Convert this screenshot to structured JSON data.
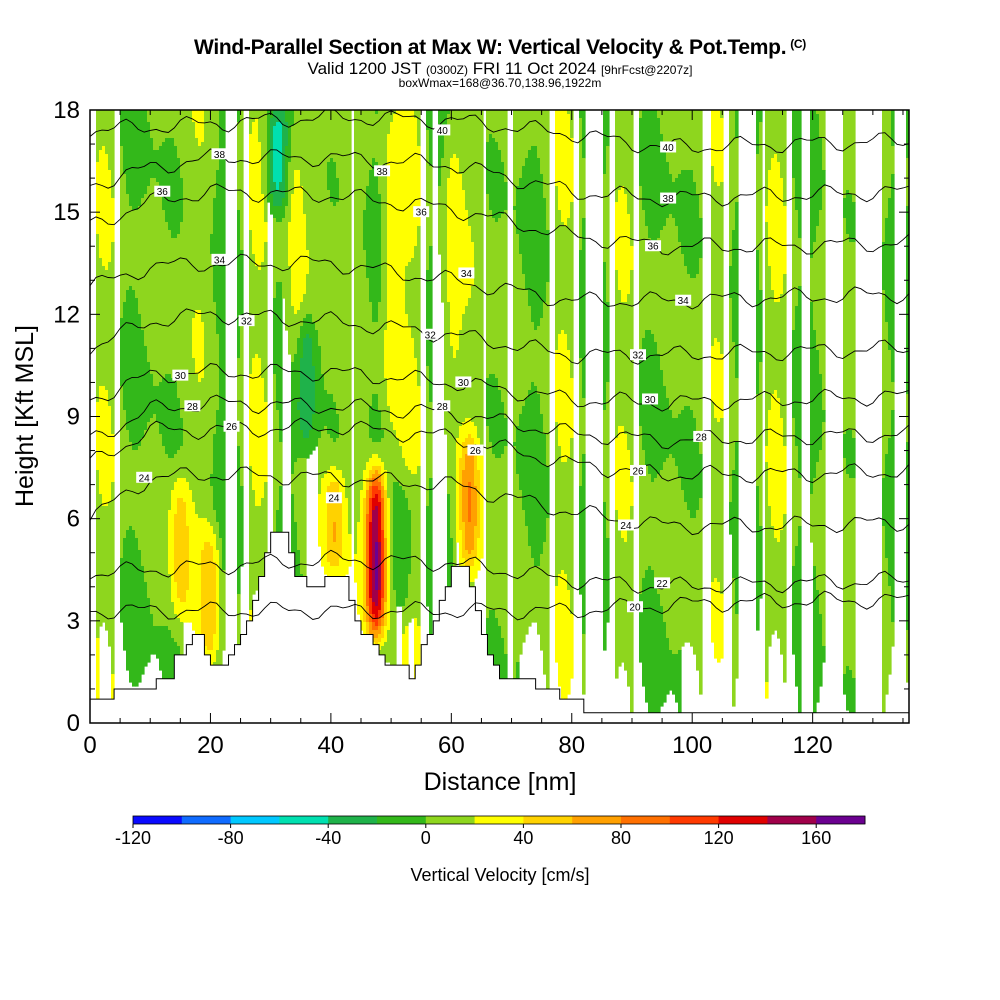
{
  "header": {
    "title": "Wind-Parallel Section at Max W: Vertical Velocity & Pot.Temp.",
    "copyright": "(C)",
    "valid_main": "Valid 1200 JST",
    "valid_utc": "(0300Z)",
    "valid_date": "FRI 11 Oct 2024",
    "forecast": "[9hrFcst@2207z]",
    "box_info": "boxWmax=168@36.70,138.96,1922m"
  },
  "chart_data": {
    "type": "heatmap",
    "xlabel": "Distance [nm]",
    "ylabel": "Height [Kft MSL]",
    "xlim": [
      0,
      136
    ],
    "ylim": [
      0,
      18
    ],
    "x_ticks": [
      0,
      20,
      40,
      60,
      80,
      100,
      120
    ],
    "y_ticks": [
      0,
      3,
      6,
      9,
      12,
      15,
      18
    ],
    "colorbar": {
      "label": "Vertical Velocity [cm/s]",
      "bounds": [
        -120,
        -100,
        -80,
        -60,
        -40,
        -20,
        0,
        20,
        40,
        60,
        80,
        100,
        120,
        140,
        160,
        180
      ],
      "tick_labels": [
        "-120",
        "-80",
        "-40",
        "0",
        "40",
        "80",
        "120",
        "160"
      ],
      "tick_values": [
        -120,
        -80,
        -40,
        0,
        40,
        80,
        120,
        160
      ],
      "colors": [
        "#0a0aff",
        "#0f6bff",
        "#00c8ff",
        "#00e0b0",
        "#1fb24a",
        "#33b81a",
        "#8ed61e",
        "#ffff00",
        "#ffd200",
        "#ffa000",
        "#ff7000",
        "#ff3a00",
        "#e00000",
        "#a0004a",
        "#6b0090"
      ]
    },
    "terrain_kft": [
      [
        0,
        0.7
      ],
      [
        3,
        0.7
      ],
      [
        4,
        1.0
      ],
      [
        9,
        1.0
      ],
      [
        11,
        1.3
      ],
      [
        13,
        1.3
      ],
      [
        14,
        2.0
      ],
      [
        15,
        2.0
      ],
      [
        16,
        2.3
      ],
      [
        17,
        2.6
      ],
      [
        18,
        2.6
      ],
      [
        19,
        2.0
      ],
      [
        20,
        1.7
      ],
      [
        22,
        1.7
      ],
      [
        23,
        2.0
      ],
      [
        24,
        2.3
      ],
      [
        25,
        2.6
      ],
      [
        26,
        3.0
      ],
      [
        27,
        3.6
      ],
      [
        28,
        4.3
      ],
      [
        29,
        5.0
      ],
      [
        30,
        5.6
      ],
      [
        31,
        5.6
      ],
      [
        33,
        5.0
      ],
      [
        34,
        4.3
      ],
      [
        35,
        4.3
      ],
      [
        36,
        4.0
      ],
      [
        38,
        4.0
      ],
      [
        39,
        4.3
      ],
      [
        42,
        4.3
      ],
      [
        43,
        3.6
      ],
      [
        44,
        3.0
      ],
      [
        45,
        2.6
      ],
      [
        46,
        2.6
      ],
      [
        47,
        2.3
      ],
      [
        48,
        2.0
      ],
      [
        49,
        1.7
      ],
      [
        53,
        1.3
      ],
      [
        54,
        1.7
      ],
      [
        55,
        2.3
      ],
      [
        56,
        2.6
      ],
      [
        57,
        3.0
      ],
      [
        58,
        3.6
      ],
      [
        59,
        4.0
      ],
      [
        60,
        4.6
      ],
      [
        62,
        4.6
      ],
      [
        63,
        4.0
      ],
      [
        64,
        3.3
      ],
      [
        65,
        2.6
      ],
      [
        66,
        2.0
      ],
      [
        67,
        1.7
      ],
      [
        68,
        1.3
      ],
      [
        72,
        1.3
      ],
      [
        74,
        1.0
      ],
      [
        76,
        1.0
      ],
      [
        78,
        0.7
      ],
      [
        80,
        0.7
      ],
      [
        82,
        0.3
      ],
      [
        136,
        0.3
      ]
    ],
    "wind_cores_cms": [
      {
        "x": 47.5,
        "ymin": 2.5,
        "ymax": 7.5,
        "w": 168
      },
      {
        "x": 63,
        "ymin": 4.5,
        "ymax": 8.5,
        "w": 60
      },
      {
        "x": 15,
        "ymin": 3.0,
        "ymax": 7.3,
        "w": 45
      },
      {
        "x": 20,
        "ymin": 1.7,
        "ymax": 5.8,
        "w": 45
      },
      {
        "x": 40.5,
        "ymin": 4.3,
        "ymax": 7.5,
        "w": 50
      },
      {
        "x": 50,
        "ymin": 8.5,
        "ymax": 18,
        "w": 35
      },
      {
        "x": 60,
        "ymin": 9.0,
        "ymax": 18,
        "w": 30
      },
      {
        "x": 34,
        "ymin": 10.0,
        "ymax": 18,
        "w": 30
      },
      {
        "x": 31,
        "ymin": 15.0,
        "ymax": 18,
        "w": -50
      },
      {
        "x": 36,
        "ymin": 8.0,
        "ymax": 12.0,
        "w": -40
      },
      {
        "x": 52,
        "ymin": 3.0,
        "ymax": 7.0,
        "w": -30
      }
    ],
    "theta_contours": [
      {
        "label": "20",
        "x": [
          0,
          30,
          60,
          80,
          90,
          100,
          120,
          136
        ],
        "y": [
          3.3,
          3.3,
          3.3,
          3.3,
          3.4,
          3.5,
          3.6,
          3.6
        ]
      },
      {
        "label": "22",
        "x": [
          0,
          20,
          40,
          60,
          80,
          95,
          115,
          136
        ],
        "y": [
          4.4,
          4.6,
          4.8,
          4.7,
          4.2,
          4.0,
          4.1,
          4.2
        ]
      },
      {
        "label": "24",
        "x": [
          0,
          10,
          20,
          40,
          60,
          80,
          95,
          115,
          136
        ],
        "y": [
          6.0,
          7.2,
          7.3,
          7.2,
          7.0,
          6.2,
          5.8,
          5.8,
          5.9
        ]
      },
      {
        "label": "26",
        "x": [
          0,
          10,
          20,
          40,
          60,
          80,
          95,
          115,
          136
        ],
        "y": [
          7.6,
          8.6,
          8.6,
          8.7,
          8.4,
          7.6,
          7.3,
          7.3,
          7.4
        ]
      },
      {
        "label": "28",
        "x": [
          0,
          10,
          20,
          40,
          60,
          80,
          95,
          115,
          136
        ],
        "y": [
          8.3,
          9.2,
          9.4,
          9.3,
          9.1,
          8.5,
          8.3,
          8.4,
          8.5
        ]
      },
      {
        "label": "30",
        "x": [
          0,
          10,
          20,
          40,
          60,
          80,
          95,
          115,
          136
        ],
        "y": [
          9.5,
          10.2,
          10.3,
          10.3,
          10.0,
          9.5,
          9.4,
          9.5,
          9.6
        ]
      },
      {
        "label": "32",
        "x": [
          0,
          10,
          20,
          40,
          60,
          80,
          95,
          115,
          136
        ],
        "y": [
          11.0,
          11.8,
          12.0,
          11.8,
          11.4,
          10.8,
          10.8,
          10.9,
          11.0
        ]
      },
      {
        "label": "34",
        "x": [
          0,
          10,
          20,
          40,
          60,
          80,
          95,
          115,
          136
        ],
        "y": [
          12.8,
          13.4,
          13.5,
          13.5,
          13.0,
          12.4,
          12.4,
          12.5,
          12.6
        ]
      },
      {
        "label": "36",
        "x": [
          0,
          10,
          20,
          40,
          60,
          80,
          95,
          115,
          136
        ],
        "y": [
          14.6,
          15.3,
          15.6,
          15.5,
          15.1,
          14.3,
          14.0,
          14.0,
          14.1
        ]
      },
      {
        "label": "38",
        "x": [
          0,
          10,
          20,
          40,
          60,
          80,
          95,
          115,
          136
        ],
        "y": [
          15.8,
          16.3,
          16.6,
          16.6,
          16.4,
          15.6,
          15.4,
          15.5,
          15.6
        ]
      },
      {
        "label": "40",
        "x": [
          0,
          20,
          40,
          60,
          80,
          95,
          115,
          136
        ],
        "y": [
          17.4,
          17.6,
          17.8,
          17.7,
          17.3,
          16.9,
          17.0,
          17.1
        ]
      }
    ],
    "contour_labels": [
      {
        "text": "20",
        "x": 90.5,
        "y": 3.4
      },
      {
        "text": "22",
        "x": 95,
        "y": 4.1
      },
      {
        "text": "24",
        "x": 89,
        "y": 5.8
      },
      {
        "text": "24",
        "x": 9,
        "y": 7.2
      },
      {
        "text": "24",
        "x": 40.5,
        "y": 6.6
      },
      {
        "text": "26",
        "x": 91,
        "y": 7.4
      },
      {
        "text": "26",
        "x": 64,
        "y": 8.0
      },
      {
        "text": "26",
        "x": 23.5,
        "y": 8.7
      },
      {
        "text": "28",
        "x": 101.5,
        "y": 8.4
      },
      {
        "text": "28",
        "x": 58.5,
        "y": 9.3
      },
      {
        "text": "28",
        "x": 17,
        "y": 9.3
      },
      {
        "text": "30",
        "x": 93,
        "y": 9.5
      },
      {
        "text": "30",
        "x": 62,
        "y": 10.0
      },
      {
        "text": "30",
        "x": 15,
        "y": 10.2
      },
      {
        "text": "32",
        "x": 91,
        "y": 10.8
      },
      {
        "text": "32",
        "x": 56.5,
        "y": 11.4
      },
      {
        "text": "32",
        "x": 26,
        "y": 11.8
      },
      {
        "text": "34",
        "x": 98.5,
        "y": 12.4
      },
      {
        "text": "34",
        "x": 62.5,
        "y": 13.2
      },
      {
        "text": "34",
        "x": 21.5,
        "y": 13.6
      },
      {
        "text": "36",
        "x": 93.5,
        "y": 14.0
      },
      {
        "text": "36",
        "x": 55,
        "y": 15.0
      },
      {
        "text": "36",
        "x": 12,
        "y": 15.6
      },
      {
        "text": "38",
        "x": 96,
        "y": 15.4
      },
      {
        "text": "38",
        "x": 48.5,
        "y": 16.2
      },
      {
        "text": "38",
        "x": 21.5,
        "y": 16.7
      },
      {
        "text": "40",
        "x": 96,
        "y": 16.9
      },
      {
        "text": "40",
        "x": 58.5,
        "y": 17.4
      }
    ]
  }
}
